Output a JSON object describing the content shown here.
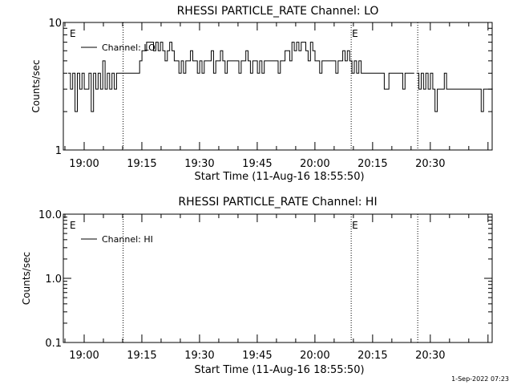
{
  "chart_data": [
    {
      "type": "line",
      "title": "RHESSI PARTICLE_RATE Channel: LO",
      "xlabel": "Start Time (11-Aug-16 18:55:50)",
      "ylabel": "Counts/sec",
      "yscale": "log",
      "ylim": [
        1,
        10
      ],
      "ytick_labels": [
        "1",
        "10"
      ],
      "xtick_labels": [
        "19:00",
        "19:15",
        "19:30",
        "19:45",
        "20:00",
        "20:15",
        "20:30"
      ],
      "xlim_minutes": [
        18.92,
        119.6
      ],
      "legend": {
        "label": "Channel: LO",
        "position": "top-left"
      },
      "event_marker": "E",
      "event_lines_minutes": [
        14.3,
        73.6,
        90.9
      ],
      "event_label_minutes": [
        0.2,
        73.6
      ],
      "series": [
        {
          "name": "Channel: LO",
          "x": [
            0,
            0.6,
            1.2,
            1.8,
            2.4,
            3.0,
            3.6,
            4.2,
            4.8,
            5.4,
            6.0,
            6.6,
            7.2,
            7.8,
            8.4,
            9.0,
            9.6,
            10.2,
            10.8,
            11.4,
            12.0,
            12.6,
            13.2,
            13.8,
            14.4,
            15.0,
            15.6,
            16.2,
            16.8,
            17.4,
            18.0,
            18.6,
            19.2,
            19.8,
            20.4,
            21.0,
            21.6,
            22.2,
            22.8,
            23.4,
            24.0,
            24.6,
            25.2,
            25.8,
            26.4,
            27.0,
            27.6,
            28.2,
            28.8,
            29.4,
            30.0,
            30.6,
            31.2,
            31.8,
            32.4,
            33.0,
            33.6,
            34.2,
            34.8,
            35.4,
            36.0,
            36.6,
            37.2,
            37.8,
            38.4,
            39.0,
            39.6,
            40.2,
            40.8,
            41.4,
            42.0,
            42.6,
            43.2,
            43.8,
            44.4,
            45.0,
            45.6,
            46.2,
            46.8,
            47.4,
            48.0,
            48.6,
            49.2,
            49.8,
            50.4,
            51.0,
            51.6,
            52.2,
            52.8,
            53.4,
            54.0,
            54.6,
            55.2,
            55.8,
            56.4,
            57.0,
            57.6,
            58.2,
            58.8,
            59.4,
            60.0,
            60.6,
            61.2,
            61.8,
            62.4,
            63.0,
            63.6,
            64.2,
            64.8,
            65.4,
            66.0,
            66.6,
            67.2,
            67.8,
            68.4,
            69.0,
            69.6,
            70.2,
            70.8,
            71.4,
            72.0,
            72.6,
            73.2,
            73.8,
            74.4,
            75.0,
            75.6,
            76.2,
            76.8,
            77.4,
            78.0,
            78.6,
            79.2,
            79.8,
            80.4,
            81.0,
            81.6,
            82.2,
            82.8,
            83.4,
            84.0,
            84.6,
            85.2,
            85.8,
            86.4,
            87.0,
            87.6,
            88.2,
            88.8,
            89.4,
            90.0
          ],
          "y": [
            4,
            3,
            4,
            2,
            4,
            3,
            4,
            3,
            3,
            4,
            2,
            4,
            3,
            4,
            3,
            5,
            3,
            4,
            3,
            4,
            3,
            4,
            4,
            4,
            4,
            4,
            4,
            4,
            4,
            4,
            4,
            5,
            6,
            6,
            7,
            7,
            7,
            6,
            7,
            6,
            7,
            6,
            5,
            6,
            7,
            6,
            5,
            5,
            4,
            5,
            4,
            5,
            5,
            6,
            5,
            5,
            4,
            5,
            4,
            5,
            5,
            5,
            6,
            4,
            5,
            5,
            6,
            5,
            4,
            5,
            5,
            5,
            5,
            5,
            4,
            5,
            5,
            6,
            5,
            4,
            5,
            5,
            4,
            5,
            4,
            5,
            5,
            5,
            5,
            5,
            5,
            4,
            5,
            5,
            6,
            6,
            5,
            7,
            6,
            7,
            6,
            7,
            7,
            6,
            5,
            7,
            6,
            5,
            5,
            4,
            5,
            5,
            5,
            5,
            5,
            5,
            4,
            5,
            5,
            6,
            5,
            6,
            5,
            4,
            5,
            4,
            5,
            4,
            4,
            4,
            4,
            4,
            4,
            4,
            4,
            4,
            4,
            3,
            3,
            4,
            4,
            4,
            4,
            4,
            4,
            3,
            4,
            4,
            4,
            4,
            4
          ]
        },
        {
          "name": "Channel: LO",
          "x": [
            90.6,
            91.2,
            91.8,
            92.4,
            93.0,
            93.6,
            94.2,
            94.8,
            95.4,
            96.0,
            96.6,
            97.2,
            97.8,
            98.4,
            99.0,
            99.6,
            100.2,
            100.8,
            101.4,
            102.0,
            102.6,
            103.2,
            103.8,
            104.4,
            105.0,
            105.6,
            106.2,
            106.8,
            107.4,
            108.0,
            108.6,
            109.2,
            109.8,
            110.4
          ],
          "y": [
            4,
            3,
            4,
            3,
            4,
            3,
            4,
            3,
            2,
            3,
            3,
            3,
            4,
            3,
            3,
            3,
            3,
            3,
            3,
            3,
            3,
            3,
            3,
            3,
            3,
            3,
            3,
            3,
            2,
            3,
            3,
            3,
            3,
            3
          ]
        }
      ]
    },
    {
      "type": "line",
      "title": "RHESSI PARTICLE_RATE Channel: HI",
      "xlabel": "Start Time (11-Aug-16 18:55:50)",
      "ylabel": "Counts/sec",
      "yscale": "log",
      "ylim": [
        0.1,
        10.0
      ],
      "ytick_labels": [
        "0.1",
        "1.0",
        "10.0"
      ],
      "xtick_labels": [
        "19:00",
        "19:15",
        "19:30",
        "19:45",
        "20:00",
        "20:15",
        "20:30"
      ],
      "xlim_minutes": [
        18.92,
        119.6
      ],
      "legend": {
        "label": "Channel: HI",
        "position": "top-left"
      },
      "event_marker": "E",
      "event_lines_minutes": [
        14.3,
        73.6,
        90.9
      ],
      "event_label_minutes": [
        0.2,
        73.6
      ],
      "series": [
        {
          "name": "Channel: HI",
          "x": [],
          "y": []
        }
      ]
    }
  ],
  "footer": {
    "timestamp": "1-Sep-2022 07:23"
  }
}
